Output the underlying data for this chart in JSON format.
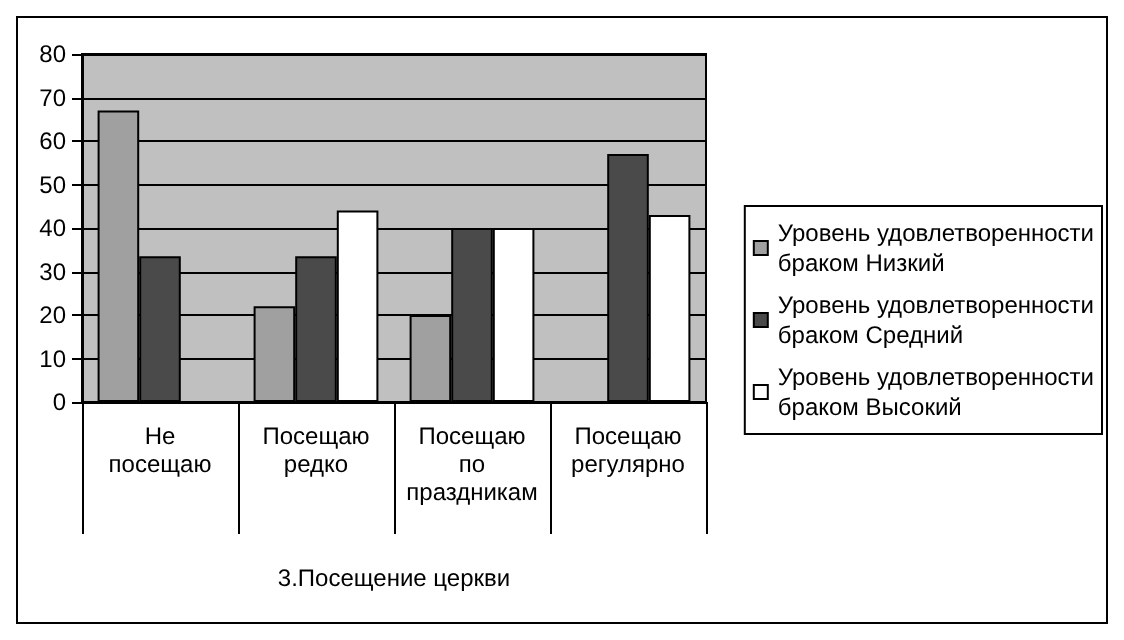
{
  "chart_data": {
    "type": "bar",
    "xlabel": "3.Посещение церкви",
    "categories": [
      "Не посещаю",
      "Посещаю редко",
      "Посещаю по праздникам",
      "Посещаю регулярно"
    ],
    "series": [
      {
        "name": "Уровень удовлетворенности браком Низкий",
        "color": "#a0a0a0",
        "values": [
          67,
          22,
          20,
          null
        ]
      },
      {
        "name": "Уровень удовлетворенности браком Средний",
        "color": "#4a4a4a",
        "values": [
          33.5,
          33.5,
          40,
          57
        ]
      },
      {
        "name": "Уровень удовлетворенности браком Высокий",
        "color": "#ffffff",
        "values": [
          null,
          44,
          40,
          43
        ]
      }
    ],
    "ylim": [
      0,
      80
    ],
    "yticks": [
      0,
      10,
      20,
      30,
      40,
      50,
      60,
      70,
      80
    ],
    "grid": "y",
    "legend": "right"
  }
}
